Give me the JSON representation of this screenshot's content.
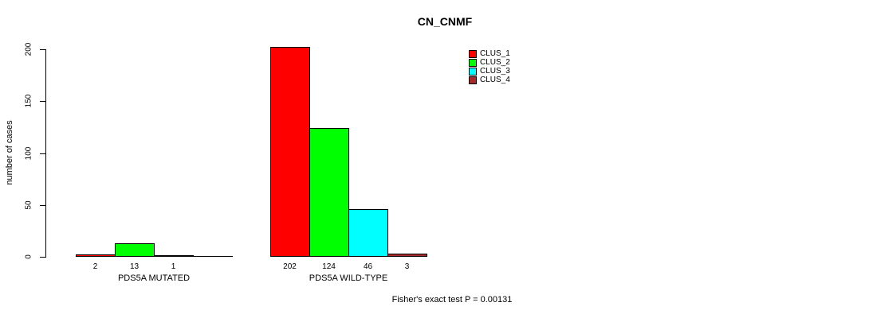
{
  "title": "CN_CNMF",
  "y_axis": {
    "label": "number of cases",
    "ticks": [
      0,
      50,
      100,
      150,
      200
    ]
  },
  "footer": "Fisher's exact test P = 0.00131",
  "legend": {
    "items": [
      {
        "label": "CLUS_1",
        "color": "#FF0000"
      },
      {
        "label": "CLUS_2",
        "color": "#00FF00"
      },
      {
        "label": "CLUS_3",
        "color": "#00FFFF"
      },
      {
        "label": "CLUS_4",
        "color": "#A52A2A"
      }
    ]
  },
  "chart_data": {
    "type": "bar",
    "title": "CN_CNMF",
    "ylabel": "number of cases",
    "xlabel": "",
    "ylim": [
      0,
      200
    ],
    "yticks": [
      0,
      50,
      100,
      150,
      200
    ],
    "grid": false,
    "legend_position": "top-right-inside",
    "series": [
      "CLUS_1",
      "CLUS_2",
      "CLUS_3",
      "CLUS_4"
    ],
    "series_colors": [
      "#FF0000",
      "#00FF00",
      "#00FFFF",
      "#A52A2A"
    ],
    "categories": [
      "PDS5A MUTATED",
      "PDS5A WILD-TYPE"
    ],
    "groups": [
      {
        "label": "PDS5A MUTATED",
        "values": [
          2,
          13,
          1,
          0
        ],
        "bar_labels": [
          "2",
          "13",
          "1",
          ""
        ]
      },
      {
        "label": "PDS5A WILD-TYPE",
        "values": [
          202,
          124,
          46,
          3
        ],
        "bar_labels": [
          "202",
          "124",
          "46",
          "3"
        ]
      }
    ],
    "annotation": "Fisher's exact test P = 0.00131"
  }
}
